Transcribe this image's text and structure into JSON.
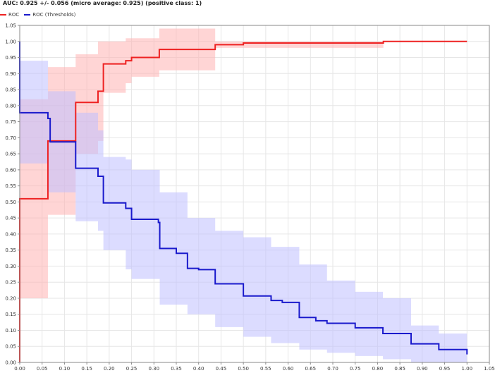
{
  "chart_data": {
    "type": "line",
    "title": "AUC: 0.925 +/- 0.056 (micro average: 0.925) (positive class: 1)",
    "xlabel": "",
    "ylabel": "",
    "xlim": [
      0,
      1.05
    ],
    "ylim": [
      0,
      1.05
    ],
    "x_ticks": [
      0.0,
      0.05,
      0.1,
      0.15,
      0.2,
      0.25,
      0.3,
      0.35,
      0.4,
      0.45,
      0.5,
      0.55,
      0.6,
      0.65,
      0.7,
      0.75,
      0.8,
      0.85,
      0.9,
      0.95,
      1.0,
      1.05
    ],
    "y_ticks": [
      0.0,
      0.05,
      0.1,
      0.15,
      0.2,
      0.25,
      0.3,
      0.35,
      0.4,
      0.45,
      0.5,
      0.55,
      0.6,
      0.65,
      0.7,
      0.75,
      0.8,
      0.85,
      0.9,
      0.95,
      1.0,
      1.05
    ],
    "grid": true,
    "legend_position": "top-left",
    "series": [
      {
        "name": "ROC",
        "color": "#ee2222",
        "band_color": "#ffb3b3",
        "points": [
          [
            0.0,
            0.0
          ],
          [
            0.0,
            0.51
          ],
          [
            0.063,
            0.51
          ],
          [
            0.063,
            0.69
          ],
          [
            0.125,
            0.69
          ],
          [
            0.125,
            0.81
          ],
          [
            0.175,
            0.81
          ],
          [
            0.175,
            0.845
          ],
          [
            0.187,
            0.845
          ],
          [
            0.187,
            0.93
          ],
          [
            0.237,
            0.93
          ],
          [
            0.237,
            0.94
          ],
          [
            0.25,
            0.94
          ],
          [
            0.25,
            0.95
          ],
          [
            0.312,
            0.95
          ],
          [
            0.312,
            0.975
          ],
          [
            0.437,
            0.975
          ],
          [
            0.437,
            0.99
          ],
          [
            0.5,
            0.99
          ],
          [
            0.5,
            0.995
          ],
          [
            0.813,
            0.995
          ],
          [
            0.813,
            1.0
          ],
          [
            1.0,
            1.0
          ]
        ],
        "upper": [
          [
            0.0,
            0.82
          ],
          [
            0.063,
            0.82
          ],
          [
            0.063,
            0.92
          ],
          [
            0.125,
            0.92
          ],
          [
            0.125,
            0.96
          ],
          [
            0.175,
            0.96
          ],
          [
            0.175,
            1.0
          ],
          [
            0.237,
            1.0
          ],
          [
            0.237,
            1.01
          ],
          [
            0.312,
            1.01
          ],
          [
            0.312,
            1.04
          ],
          [
            0.437,
            1.04
          ],
          [
            0.437,
            1.0
          ],
          [
            0.813,
            1.0
          ],
          [
            0.813,
            1.0
          ],
          [
            1.0,
            1.0
          ]
        ],
        "lower": [
          [
            0.0,
            0.2
          ],
          [
            0.063,
            0.2
          ],
          [
            0.063,
            0.46
          ],
          [
            0.125,
            0.46
          ],
          [
            0.125,
            0.65
          ],
          [
            0.175,
            0.65
          ],
          [
            0.175,
            0.69
          ],
          [
            0.187,
            0.69
          ],
          [
            0.187,
            0.84
          ],
          [
            0.237,
            0.84
          ],
          [
            0.237,
            0.87
          ],
          [
            0.25,
            0.87
          ],
          [
            0.25,
            0.89
          ],
          [
            0.312,
            0.89
          ],
          [
            0.312,
            0.91
          ],
          [
            0.437,
            0.91
          ],
          [
            0.437,
            0.98
          ],
          [
            0.813,
            0.98
          ],
          [
            0.813,
            1.0
          ],
          [
            1.0,
            1.0
          ]
        ]
      },
      {
        "name": "ROC (Thresholds)",
        "color": "#1a1acc",
        "band_color": "#c0c0ff",
        "points": [
          [
            0.0,
            1.0
          ],
          [
            0.0,
            0.778
          ],
          [
            0.063,
            0.778
          ],
          [
            0.063,
            0.76
          ],
          [
            0.068,
            0.76
          ],
          [
            0.068,
            0.687
          ],
          [
            0.125,
            0.687
          ],
          [
            0.125,
            0.605
          ],
          [
            0.175,
            0.605
          ],
          [
            0.175,
            0.58
          ],
          [
            0.187,
            0.58
          ],
          [
            0.187,
            0.497
          ],
          [
            0.237,
            0.497
          ],
          [
            0.237,
            0.48
          ],
          [
            0.25,
            0.48
          ],
          [
            0.25,
            0.446
          ],
          [
            0.31,
            0.446
          ],
          [
            0.31,
            0.436
          ],
          [
            0.313,
            0.436
          ],
          [
            0.313,
            0.355
          ],
          [
            0.35,
            0.355
          ],
          [
            0.35,
            0.34
          ],
          [
            0.375,
            0.34
          ],
          [
            0.375,
            0.293
          ],
          [
            0.4,
            0.293
          ],
          [
            0.4,
            0.289
          ],
          [
            0.437,
            0.289
          ],
          [
            0.437,
            0.245
          ],
          [
            0.5,
            0.245
          ],
          [
            0.5,
            0.207
          ],
          [
            0.562,
            0.207
          ],
          [
            0.562,
            0.193
          ],
          [
            0.587,
            0.193
          ],
          [
            0.587,
            0.187
          ],
          [
            0.625,
            0.187
          ],
          [
            0.625,
            0.14
          ],
          [
            0.662,
            0.14
          ],
          [
            0.662,
            0.13
          ],
          [
            0.687,
            0.13
          ],
          [
            0.687,
            0.122
          ],
          [
            0.75,
            0.122
          ],
          [
            0.75,
            0.108
          ],
          [
            0.812,
            0.108
          ],
          [
            0.812,
            0.09
          ],
          [
            0.875,
            0.09
          ],
          [
            0.875,
            0.058
          ],
          [
            0.937,
            0.058
          ],
          [
            0.937,
            0.04
          ],
          [
            1.0,
            0.04
          ],
          [
            1.0,
            0.025
          ]
        ],
        "upper": [
          [
            0.0,
            0.94
          ],
          [
            0.063,
            0.94
          ],
          [
            0.063,
            0.845
          ],
          [
            0.125,
            0.845
          ],
          [
            0.125,
            0.778
          ],
          [
            0.175,
            0.778
          ],
          [
            0.175,
            0.723
          ],
          [
            0.187,
            0.723
          ],
          [
            0.187,
            0.64
          ],
          [
            0.237,
            0.64
          ],
          [
            0.237,
            0.632
          ],
          [
            0.25,
            0.632
          ],
          [
            0.25,
            0.6
          ],
          [
            0.313,
            0.6
          ],
          [
            0.313,
            0.53
          ],
          [
            0.375,
            0.53
          ],
          [
            0.375,
            0.45
          ],
          [
            0.437,
            0.45
          ],
          [
            0.437,
            0.41
          ],
          [
            0.5,
            0.41
          ],
          [
            0.5,
            0.39
          ],
          [
            0.562,
            0.39
          ],
          [
            0.562,
            0.36
          ],
          [
            0.625,
            0.36
          ],
          [
            0.625,
            0.305
          ],
          [
            0.687,
            0.305
          ],
          [
            0.687,
            0.255
          ],
          [
            0.75,
            0.255
          ],
          [
            0.75,
            0.22
          ],
          [
            0.812,
            0.22
          ],
          [
            0.812,
            0.2
          ],
          [
            0.875,
            0.2
          ],
          [
            0.875,
            0.115
          ],
          [
            0.937,
            0.115
          ],
          [
            0.937,
            0.09
          ],
          [
            1.0,
            0.09
          ]
        ],
        "lower": [
          [
            0.0,
            0.62
          ],
          [
            0.063,
            0.62
          ],
          [
            0.063,
            0.53
          ],
          [
            0.125,
            0.53
          ],
          [
            0.125,
            0.44
          ],
          [
            0.175,
            0.44
          ],
          [
            0.175,
            0.41
          ],
          [
            0.187,
            0.41
          ],
          [
            0.187,
            0.35
          ],
          [
            0.237,
            0.35
          ],
          [
            0.237,
            0.29
          ],
          [
            0.25,
            0.29
          ],
          [
            0.25,
            0.26
          ],
          [
            0.313,
            0.26
          ],
          [
            0.313,
            0.18
          ],
          [
            0.375,
            0.18
          ],
          [
            0.375,
            0.15
          ],
          [
            0.437,
            0.15
          ],
          [
            0.437,
            0.11
          ],
          [
            0.5,
            0.11
          ],
          [
            0.5,
            0.08
          ],
          [
            0.562,
            0.08
          ],
          [
            0.562,
            0.06
          ],
          [
            0.625,
            0.06
          ],
          [
            0.625,
            0.04
          ],
          [
            0.687,
            0.04
          ],
          [
            0.687,
            0.03
          ],
          [
            0.75,
            0.03
          ],
          [
            0.75,
            0.02
          ],
          [
            0.812,
            0.02
          ],
          [
            0.812,
            0.01
          ],
          [
            0.875,
            0.01
          ],
          [
            0.875,
            0.0
          ],
          [
            1.0,
            0.0
          ]
        ]
      }
    ]
  }
}
